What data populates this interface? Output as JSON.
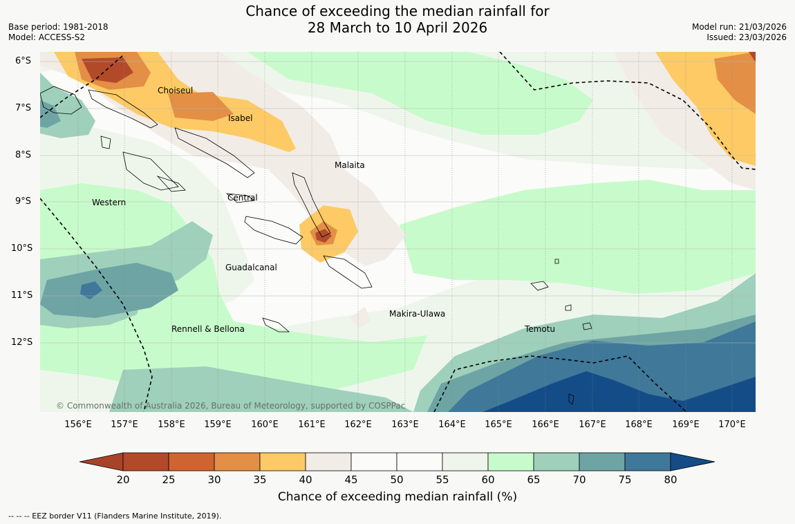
{
  "title_line1": "Chance of exceeding the median rainfall for",
  "title_line2": "28 March to 10 April 2026",
  "base_period": "Base period: 1981-2018",
  "model": "Model: ACCESS-S2",
  "model_run": "Model run: 21/03/2026",
  "issued": "Issued: 23/03/2026",
  "lat_labels": [
    "6°S",
    "7°S",
    "8°S",
    "9°S",
    "10°S",
    "11°S",
    "12°S"
  ],
  "lon_labels": [
    "156°E",
    "157°E",
    "158°E",
    "159°E",
    "160°E",
    "161°E",
    "162°E",
    "163°E",
    "164°E",
    "165°E",
    "166°E",
    "167°E",
    "168°E",
    "169°E",
    "170°E"
  ],
  "regions": [
    "Choiseul",
    "Isabel",
    "Malaita",
    "Western",
    "Central",
    "Guadalcanal",
    "Makira-Ulawa",
    "Temotu",
    "Rennell & Bellona"
  ],
  "copyright": "© Commonwealth of Australia 2026, Bureau of Meteorology, supported by COSPPac",
  "colorbar": {
    "ticks": [
      "20",
      "25",
      "30",
      "35",
      "40",
      "45",
      "50",
      "55",
      "60",
      "65",
      "70",
      "75",
      "80"
    ],
    "colors": [
      "#a8432a",
      "#b24a2a",
      "#cf6430",
      "#e38f45",
      "#fdca65",
      "#f2ece7",
      "#fbfbf9",
      "#fbfbf9",
      "#eef6ec",
      "#c8fbcb",
      "#9ed0bb",
      "#6ea4a4",
      "#3f7899",
      "#144c87"
    ],
    "label": "Chance of exceeding median rainfall (%)"
  },
  "footnote": "--  --  -- EEZ border V11 (Flanders Marine Institute, 2019)."
}
